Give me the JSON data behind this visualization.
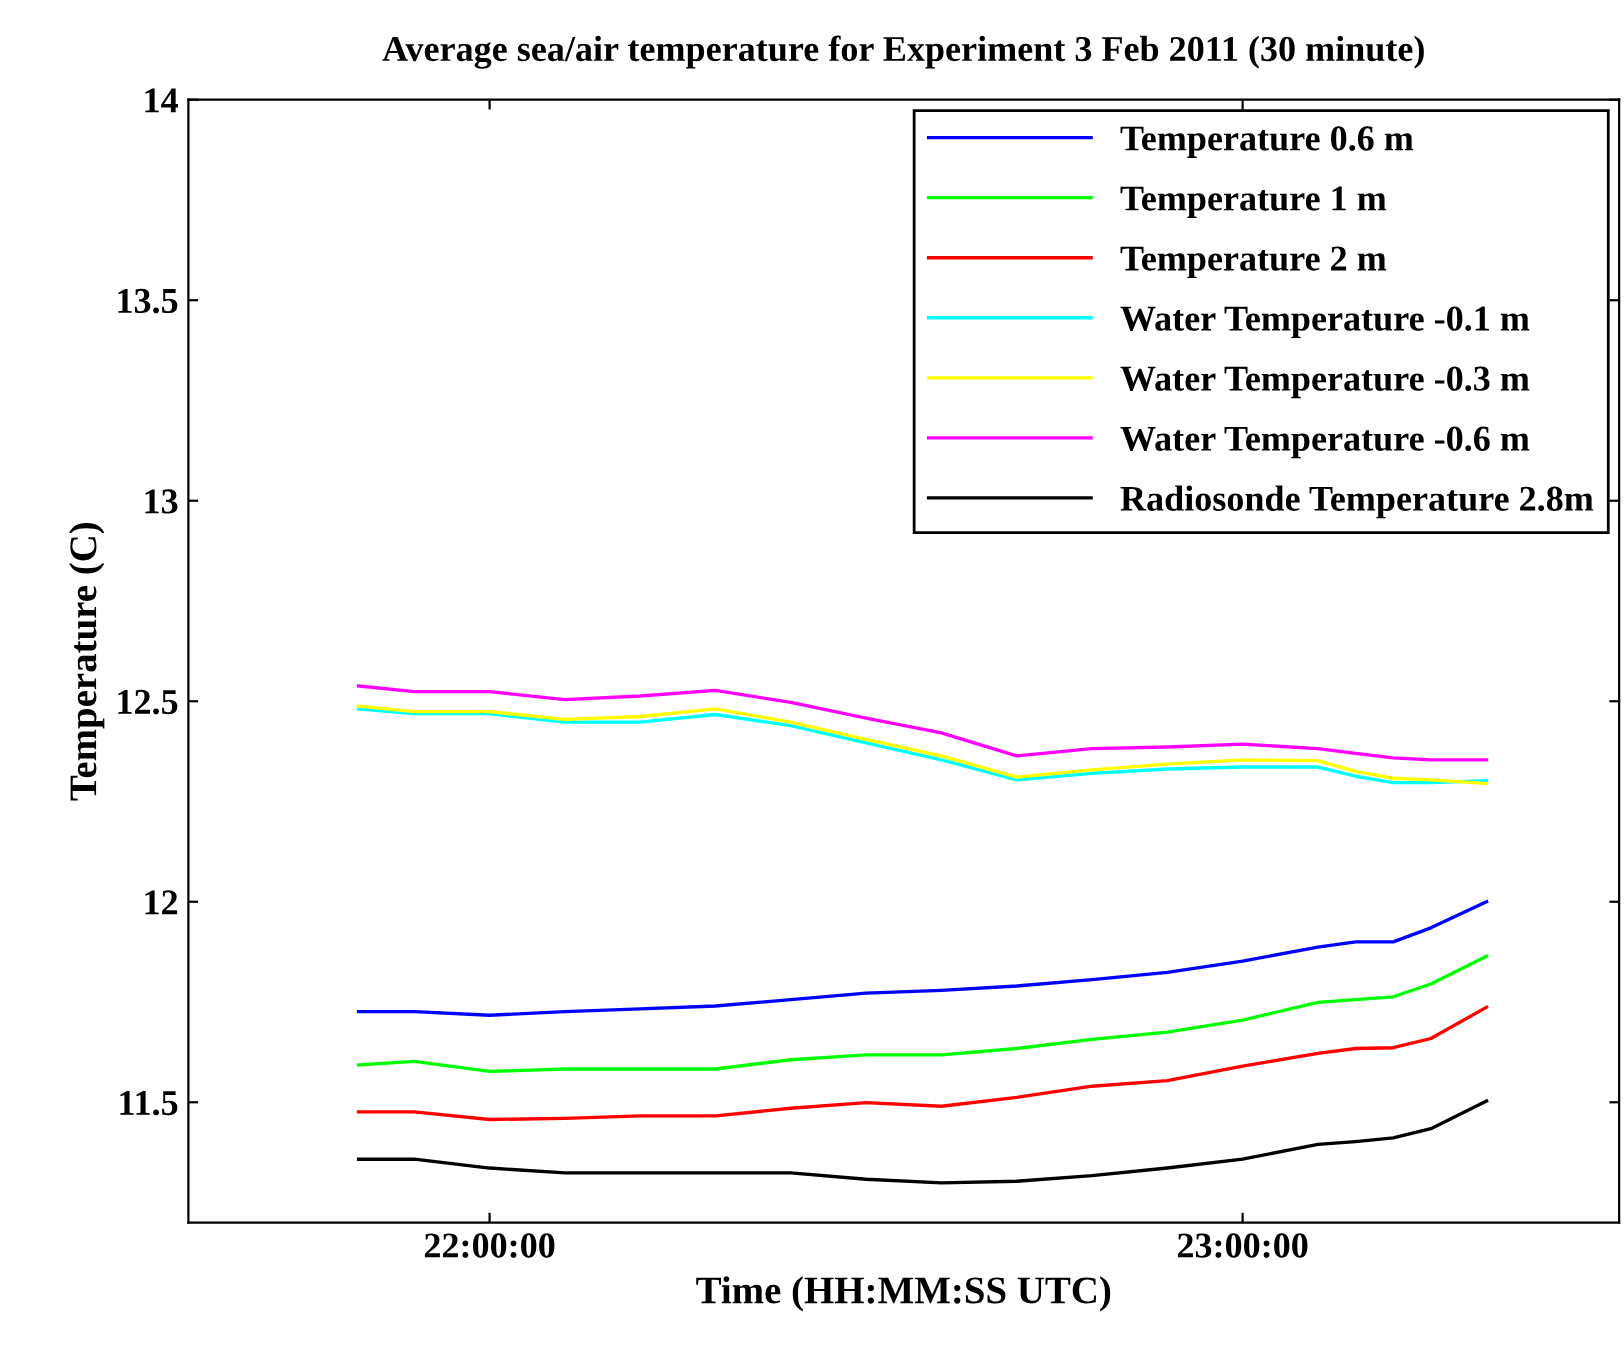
{
  "chart_data": {
    "type": "line",
    "title": "Average sea/air temperature for Experiment 3 Feb 2011 (30 minute)",
    "xlabel": "Time (HH:MM:SS UTC)",
    "ylabel": "Temperature (C)",
    "x": [
      21.826,
      21.9,
      22.0,
      22.1,
      22.2,
      22.3,
      22.4,
      22.5,
      22.6,
      22.7,
      22.8,
      22.9,
      23.0,
      23.1,
      23.15,
      23.2,
      23.25,
      23.324
    ],
    "series": [
      {
        "name": "Temperature 0.6 m",
        "color": "#0000ff",
        "values": [
          11.726,
          11.726,
          11.717,
          11.726,
          11.733,
          11.74,
          11.756,
          11.772,
          11.779,
          11.79,
          11.806,
          11.824,
          11.852,
          11.887,
          11.9,
          11.9,
          11.935,
          12.0
        ]
      },
      {
        "name": "Temperature 1 m",
        "color": "#00ff00",
        "values": [
          11.593,
          11.602,
          11.577,
          11.583,
          11.583,
          11.583,
          11.606,
          11.618,
          11.618,
          11.634,
          11.657,
          11.675,
          11.705,
          11.749,
          11.756,
          11.763,
          11.795,
          11.864
        ]
      },
      {
        "name": "Temperature 2 m",
        "color": "#ff0000",
        "values": [
          11.476,
          11.476,
          11.457,
          11.46,
          11.466,
          11.466,
          11.485,
          11.499,
          11.49,
          11.512,
          11.54,
          11.554,
          11.59,
          11.622,
          11.634,
          11.636,
          11.659,
          11.737
        ]
      },
      {
        "name": "Water Temperature -0.1 m",
        "color": "#00ffff",
        "values": [
          12.481,
          12.469,
          12.469,
          12.448,
          12.448,
          12.467,
          12.439,
          12.396,
          12.354,
          12.304,
          12.32,
          12.331,
          12.336,
          12.336,
          12.313,
          12.297,
          12.297,
          12.302
        ]
      },
      {
        "name": "Water Temperature -0.3 m",
        "color": "#ffff00",
        "values": [
          12.488,
          12.474,
          12.474,
          12.455,
          12.462,
          12.481,
          12.448,
          12.405,
          12.364,
          12.311,
          12.329,
          12.343,
          12.354,
          12.352,
          12.325,
          12.308,
          12.304,
          12.295
        ]
      },
      {
        "name": "Water Temperature -0.6 m",
        "color": "#ff00ff",
        "values": [
          12.538,
          12.524,
          12.524,
          12.504,
          12.513,
          12.527,
          12.497,
          12.458,
          12.421,
          12.364,
          12.382,
          12.386,
          12.393,
          12.382,
          12.37,
          12.359,
          12.354,
          12.354
        ]
      },
      {
        "name": "Radiosonde Temperature 2.8m",
        "color": "#000000",
        "values": [
          11.358,
          11.358,
          11.336,
          11.324,
          11.324,
          11.324,
          11.324,
          11.308,
          11.299,
          11.303,
          11.317,
          11.336,
          11.358,
          11.395,
          11.402,
          11.411,
          11.434,
          11.503
        ]
      }
    ],
    "xlim": [
      21.6,
      23.5
    ],
    "xticks": [
      {
        "value": 22,
        "label": "22:00:00"
      },
      {
        "value": 23,
        "label": "23:00:00"
      }
    ],
    "ylim": [
      11.2,
      14
    ],
    "yticks": [
      11.5,
      12,
      12.5,
      13,
      13.5,
      14
    ],
    "grid": false,
    "legend": "top right",
    "marker": "none",
    "line_style": "solid"
  }
}
